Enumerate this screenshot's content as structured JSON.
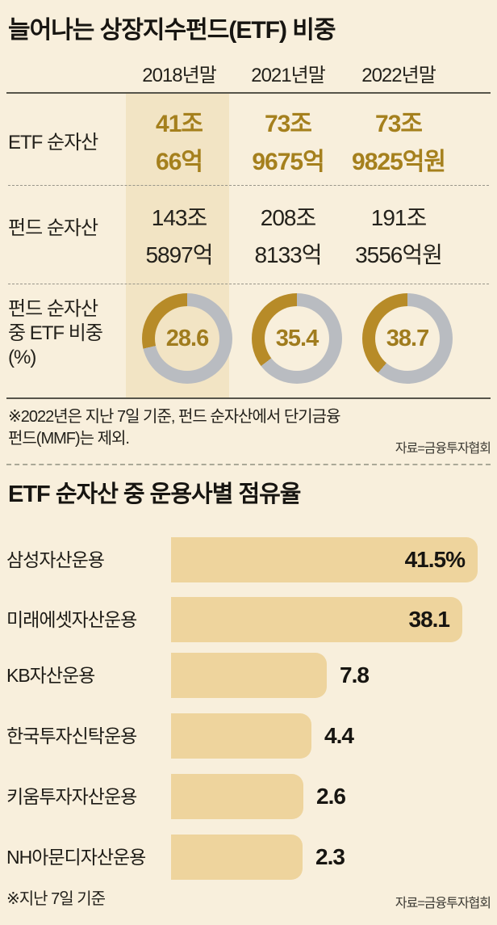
{
  "colors": {
    "background": "#f8efdc",
    "column_band": "#f2e4c4",
    "bar_fill": "#eed49d",
    "gold_text": "#a5801d",
    "donut_gold": "#b78b28",
    "donut_gray": "#b9bcc1",
    "dark_text": "#1d1b16"
  },
  "section1": {
    "title": "늘어나는 상장지수펀드(ETF) 비중",
    "columns": [
      "2018년말",
      "2021년말",
      "2022년말"
    ],
    "rows": [
      {
        "label": "ETF 순자산",
        "values": [
          [
            "41조",
            "66억"
          ],
          [
            "73조",
            "9675억"
          ],
          [
            "73조",
            "9825억원"
          ]
        ]
      },
      {
        "label": "펀드 순자산",
        "values": [
          [
            "143조",
            "5897억"
          ],
          [
            "208조",
            "8133억"
          ],
          [
            "191조",
            "3556억원"
          ]
        ]
      }
    ],
    "donut_row": {
      "label_lines": [
        "펀드 순자산",
        "중 ETF 비중",
        "(%)"
      ],
      "values": [
        28.6,
        35.4,
        38.7
      ]
    },
    "footnote_lines": [
      "※2022년은 지난 7일 기준, 펀드 순자산에서 단기금융",
      "펀드(MMF)는 제외."
    ],
    "source": "자료=금융투자협회"
  },
  "section2": {
    "title": "ETF 순자산 중 운용사별 점유율",
    "bars": [
      {
        "label": "삼성자산운용",
        "value": 41.5,
        "display": "41.5%"
      },
      {
        "label": "미래에셋자산운용",
        "value": 38.1,
        "display": "38.1"
      },
      {
        "label": "KB자산운용",
        "value": 7.8,
        "display": "7.8"
      },
      {
        "label": "한국투자신탁운용",
        "value": 4.4,
        "display": "4.4"
      },
      {
        "label": "키움투자자산운용",
        "value": 2.6,
        "display": "2.6"
      },
      {
        "label": "NH아문디자산운용",
        "value": 2.3,
        "display": "2.3"
      }
    ],
    "footnote": "※지난 7일 기준",
    "source": "자료=금융투자협회"
  },
  "chart_data": [
    {
      "type": "table",
      "title": "늘어나는 상장지수펀드(ETF) 비중",
      "columns": [
        "2018년말",
        "2021년말",
        "2022년말"
      ],
      "rows": [
        {
          "label": "ETF 순자산",
          "values": [
            "41조 66억",
            "73조 9675억",
            "73조 9825억원"
          ]
        },
        {
          "label": "펀드 순자산",
          "values": [
            "143조 5897억",
            "208조 8133억",
            "191조 3556억원"
          ]
        },
        {
          "label": "펀드 순자산 중 ETF 비중(%)",
          "values": [
            28.6,
            35.4,
            38.7
          ]
        }
      ],
      "footnote": "※2022년은 지난 7일 기준, 펀드 순자산에서 단기금융 펀드(MMF)는 제외.",
      "source": "자료=금융투자협회"
    },
    {
      "type": "donut",
      "title": "펀드 순자산 중 ETF 비중(%)",
      "categories": [
        "2018년말",
        "2021년말",
        "2022년말"
      ],
      "values": [
        28.6,
        35.4,
        38.7
      ],
      "arc_direction": "counterclockwise-from-top"
    },
    {
      "type": "bar",
      "title": "ETF 순자산 중 운용사별 점유율",
      "categories": [
        "삼성자산운용",
        "미래에셋자산운용",
        "KB자산운용",
        "한국투자신탁운용",
        "키움투자자산운용",
        "NH아문디자산운용"
      ],
      "values": [
        41.5,
        38.1,
        7.8,
        4.4,
        2.6,
        2.3
      ],
      "unit": "%",
      "orientation": "horizontal",
      "footnote": "※지난 7일 기준",
      "source": "자료=금융투자협회"
    }
  ]
}
